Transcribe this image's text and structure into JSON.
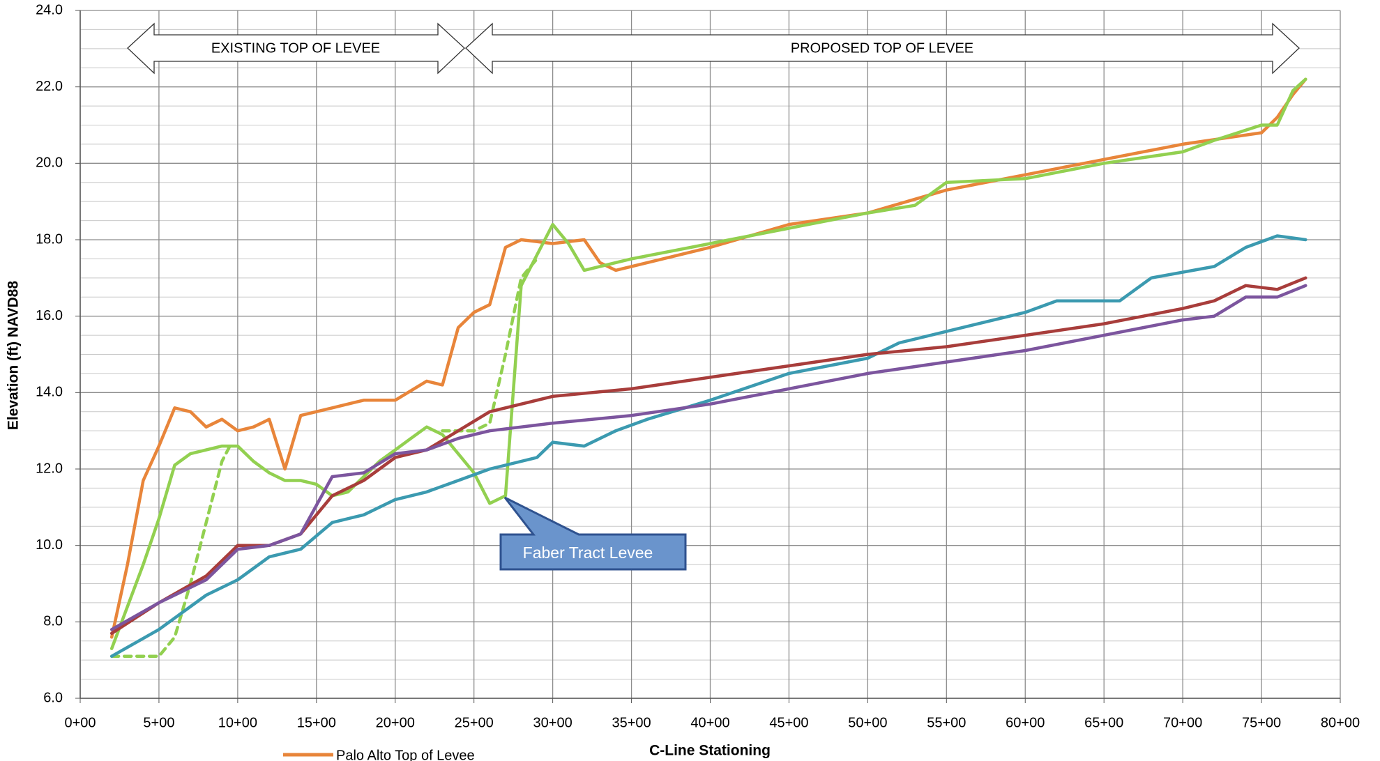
{
  "chart_data": {
    "type": "line",
    "y_label": "Elevation (ft) NAVD88",
    "x_label": "C-Line Stationing",
    "annotations": [
      "EXISTING TOP OF LEVEE",
      "PROPOSED TOP OF LEVEE",
      "Faber Tract Levee"
    ],
    "xlim": [
      0,
      8000
    ],
    "xticks": [
      {
        "value": 0,
        "label": "0+00"
      },
      {
        "value": 500,
        "label": "5+00"
      },
      {
        "value": 1000,
        "label": "10+00"
      },
      {
        "value": 1500,
        "label": "15+00"
      },
      {
        "value": 2000,
        "label": "20+00"
      },
      {
        "value": 2500,
        "label": "25+00"
      },
      {
        "value": 3000,
        "label": "30+00"
      },
      {
        "value": 3500,
        "label": "35+00"
      },
      {
        "value": 4000,
        "label": "40+00"
      },
      {
        "value": 4500,
        "label": "45+00"
      },
      {
        "value": 5000,
        "label": "50+00"
      },
      {
        "value": 5500,
        "label": "55+00"
      },
      {
        "value": 6000,
        "label": "60+00"
      },
      {
        "value": 6500,
        "label": "65+00"
      },
      {
        "value": 7000,
        "label": "70+00"
      },
      {
        "value": 7500,
        "label": "75+00"
      },
      {
        "value": 8000,
        "label": "80+00"
      }
    ],
    "ylim": [
      6,
      24
    ],
    "yticks": [
      {
        "value": 6,
        "label": "6.0"
      },
      {
        "value": 8,
        "label": "8.0"
      },
      {
        "value": 10,
        "label": "10.0"
      },
      {
        "value": 12,
        "label": "12.0"
      },
      {
        "value": 14,
        "label": "14.0"
      },
      {
        "value": 16,
        "label": "16.0"
      },
      {
        "value": 18,
        "label": "18.0"
      },
      {
        "value": 20,
        "label": "20.0"
      },
      {
        "value": 22,
        "label": "22.0"
      },
      {
        "value": 24,
        "label": "24.0"
      }
    ],
    "grid": true,
    "series": [
      {
        "name": "Palo Alto Top of Levee",
        "color": "#e8853a",
        "x": [
          200,
          300,
          400,
          500,
          600,
          700,
          800,
          900,
          1000,
          1100,
          1200,
          1300,
          1400,
          1600,
          1800,
          2000,
          2200,
          2300,
          2400,
          2500,
          2600,
          2700,
          2800,
          3000,
          3200,
          3300,
          3400,
          3500,
          4000,
          4500,
          5000,
          5500,
          6000,
          6500,
          7000,
          7500,
          7600,
          7700,
          7780
        ],
        "values": [
          7.6,
          9.5,
          11.7,
          12.6,
          13.6,
          13.5,
          13.1,
          13.3,
          13.0,
          13.1,
          13.3,
          12.0,
          13.4,
          13.6,
          13.8,
          13.8,
          14.3,
          14.2,
          15.7,
          16.1,
          16.3,
          17.8,
          18.0,
          17.9,
          18.0,
          17.4,
          17.2,
          17.3,
          17.8,
          18.4,
          18.7,
          19.3,
          19.7,
          20.1,
          20.5,
          20.8,
          21.2,
          21.8,
          22.2
        ]
      },
      {
        "color": "#92d050",
        "x": [
          200,
          400,
          500,
          600,
          700,
          800,
          900,
          1000,
          1100,
          1200,
          1300,
          1400,
          1500,
          1600,
          1700,
          1800,
          1900,
          2000,
          2100,
          2200,
          2300,
          2400,
          2500,
          2600,
          2700,
          2800,
          2900,
          3000,
          3100,
          3200,
          3500,
          4000,
          4500,
          5000,
          5300,
          5500,
          6000,
          6500,
          7000,
          7200,
          7500,
          7600,
          7700,
          7780
        ],
        "values": [
          7.3,
          9.5,
          10.7,
          12.1,
          12.4,
          12.5,
          12.6,
          12.6,
          12.2,
          11.9,
          11.7,
          11.7,
          11.6,
          11.3,
          11.4,
          11.8,
          12.2,
          12.5,
          12.8,
          13.1,
          12.9,
          12.4,
          11.9,
          11.1,
          11.3,
          16.8,
          17.6,
          18.4,
          17.9,
          17.2,
          17.5,
          17.9,
          18.3,
          18.7,
          18.9,
          19.5,
          19.6,
          20.0,
          20.3,
          20.6,
          21.0,
          21.0,
          21.9,
          22.2
        ]
      },
      {
        "color": "#92d050",
        "dashed": true,
        "x": [
          200,
          300,
          500,
          600,
          700,
          800,
          900,
          950,
          1600,
          2300,
          2500,
          2600,
          2700,
          2800,
          2900
        ],
        "values": [
          7.1,
          7.1,
          7.1,
          7.6,
          9.0,
          10.6,
          12.2,
          12.6,
          null,
          13.0,
          13.0,
          13.2,
          15.0,
          17.0,
          17.5
        ]
      },
      {
        "color": "#3b9ab0",
        "x": [
          200,
          500,
          800,
          1000,
          1200,
          1400,
          1600,
          1800,
          2000,
          2200,
          2400,
          2600,
          2800,
          2900,
          3000,
          3200,
          3400,
          3600,
          4000,
          4500,
          5000,
          5200,
          5500,
          6000,
          6200,
          6600,
          6800,
          7200,
          7400,
          7600,
          7780
        ],
        "values": [
          7.1,
          7.8,
          8.7,
          9.1,
          9.7,
          9.9,
          10.6,
          10.8,
          11.2,
          11.4,
          11.7,
          12.0,
          12.2,
          12.3,
          12.7,
          12.6,
          13.0,
          13.3,
          13.8,
          14.5,
          14.9,
          15.3,
          15.6,
          16.1,
          16.4,
          16.4,
          17.0,
          17.3,
          17.8,
          18.1,
          18.0
        ]
      },
      {
        "color": "#a83d3b",
        "x": [
          200,
          500,
          800,
          1000,
          1200,
          1400,
          1600,
          1800,
          2000,
          2200,
          2400,
          2600,
          2800,
          3000,
          3500,
          4000,
          4500,
          5000,
          5500,
          6000,
          6500,
          7000,
          7200,
          7400,
          7600,
          7780
        ],
        "values": [
          7.7,
          8.5,
          9.2,
          10.0,
          10.0,
          10.3,
          11.3,
          11.7,
          12.3,
          12.5,
          13.0,
          13.5,
          13.7,
          13.9,
          14.1,
          14.4,
          14.7,
          15.0,
          15.2,
          15.5,
          15.8,
          16.2,
          16.4,
          16.8,
          16.7,
          17.0
        ]
      },
      {
        "color": "#7c559e",
        "x": [
          200,
          500,
          800,
          1000,
          1200,
          1400,
          1600,
          1800,
          2000,
          2200,
          2400,
          2600,
          2800,
          3000,
          3500,
          4000,
          4500,
          5000,
          5500,
          6000,
          6500,
          7000,
          7200,
          7400,
          7600,
          7780
        ],
        "values": [
          7.8,
          8.5,
          9.1,
          9.9,
          10.0,
          10.3,
          11.8,
          11.9,
          12.4,
          12.5,
          12.8,
          13.0,
          13.1,
          13.2,
          13.4,
          13.7,
          14.1,
          14.5,
          14.8,
          15.1,
          15.5,
          15.9,
          16.0,
          16.5,
          16.5,
          16.8
        ]
      }
    ]
  }
}
